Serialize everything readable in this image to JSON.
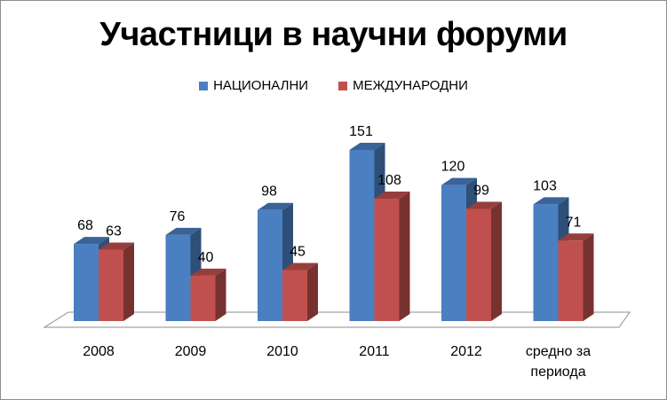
{
  "chart_data": {
    "type": "bar",
    "title": "Участници в научни форуми",
    "xlabel": "",
    "ylabel": "",
    "categories": [
      "2008",
      "2009",
      "2010",
      "2011",
      "2012",
      "средно за периода"
    ],
    "series": [
      {
        "name": "НАЦИОНАЛНИ",
        "values": [
          68,
          76,
          98,
          151,
          120,
          103
        ],
        "color": "#4a7fc1"
      },
      {
        "name": "МЕЖДУНАРОДНИ",
        "values": [
          63,
          40,
          45,
          108,
          99,
          71
        ],
        "color": "#c0504d"
      }
    ],
    "ylim": [
      0,
      151
    ],
    "grid": false,
    "legend": "top"
  }
}
